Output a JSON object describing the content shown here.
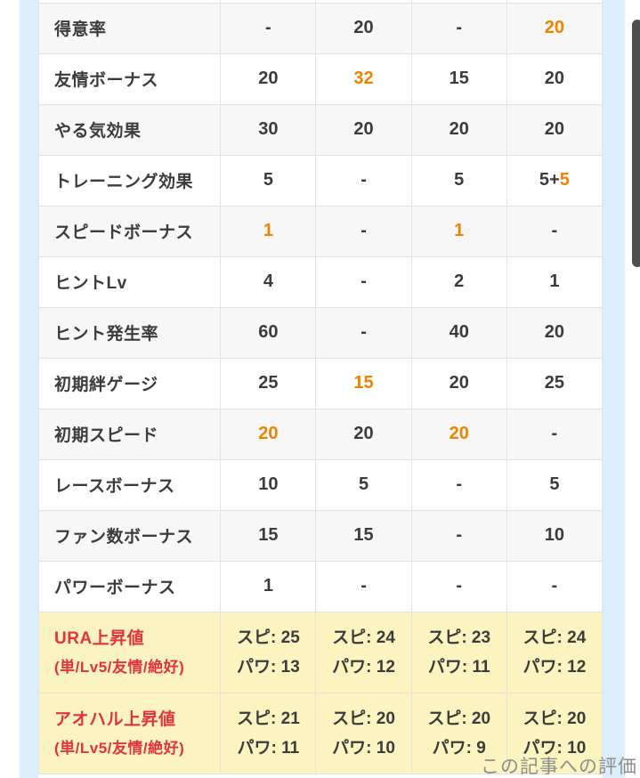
{
  "colors": {
    "text": "#3b3b3b",
    "orange": "#ef8200",
    "red": "#e4333b",
    "row-gray": "#f7f7f7",
    "row-yellow": "#fbf4c0",
    "strip-blue": "#daeffb",
    "border": "#e2e2e2",
    "scrollbar": "#4e4e4e",
    "watermark": "#8c8c8c"
  },
  "footer": {
    "watermark": "この記事への評価"
  },
  "table": {
    "rows": [
      {
        "label": "得意率",
        "shade": "gray",
        "cells": [
          {
            "text": "-"
          },
          {
            "text": "20"
          },
          {
            "text": "-"
          },
          {
            "text": "20",
            "orange": true
          }
        ]
      },
      {
        "label": "友情ボーナス",
        "shade": "white",
        "cells": [
          {
            "text": "20"
          },
          {
            "text": "32",
            "orange": true
          },
          {
            "text": "15"
          },
          {
            "text": "20"
          }
        ]
      },
      {
        "label": "やる気効果",
        "shade": "gray",
        "cells": [
          {
            "text": "30"
          },
          {
            "text": "20"
          },
          {
            "text": "20"
          },
          {
            "text": "20"
          }
        ]
      },
      {
        "label": "トレーニング効果",
        "shade": "white",
        "cells": [
          {
            "text": "5"
          },
          {
            "text": "-"
          },
          {
            "text": "5"
          },
          {
            "segments": [
              {
                "text": "5+"
              },
              {
                "text": "5",
                "orange": true
              }
            ]
          }
        ]
      },
      {
        "label": "スピードボーナス",
        "shade": "gray",
        "cells": [
          {
            "text": "1",
            "orange": true
          },
          {
            "text": "-"
          },
          {
            "text": "1",
            "orange": true
          },
          {
            "text": "-"
          }
        ]
      },
      {
        "label": "ヒントLv",
        "shade": "white",
        "cells": [
          {
            "text": "4"
          },
          {
            "text": "-"
          },
          {
            "text": "2"
          },
          {
            "text": "1"
          }
        ]
      },
      {
        "label": "ヒント発生率",
        "shade": "gray",
        "cells": [
          {
            "text": "60"
          },
          {
            "text": "-"
          },
          {
            "text": "40"
          },
          {
            "text": "20"
          }
        ]
      },
      {
        "label": "初期絆ゲージ",
        "shade": "white",
        "cells": [
          {
            "text": "25"
          },
          {
            "text": "15",
            "orange": true
          },
          {
            "text": "20"
          },
          {
            "text": "25"
          }
        ]
      },
      {
        "label": "初期スピード",
        "shade": "gray",
        "cells": [
          {
            "text": "20",
            "orange": true
          },
          {
            "text": "20"
          },
          {
            "text": "20",
            "orange": true
          },
          {
            "text": "-"
          }
        ]
      },
      {
        "label": "レースボーナス",
        "shade": "white",
        "cells": [
          {
            "text": "10"
          },
          {
            "text": "5"
          },
          {
            "text": "-"
          },
          {
            "text": "5"
          }
        ]
      },
      {
        "label": "ファン数ボーナス",
        "shade": "gray",
        "cells": [
          {
            "text": "15"
          },
          {
            "text": "15"
          },
          {
            "text": "-"
          },
          {
            "text": "10"
          }
        ]
      },
      {
        "label": "パワーボーナス",
        "shade": "white",
        "cells": [
          {
            "text": "1"
          },
          {
            "text": "-"
          },
          {
            "text": "-"
          },
          {
            "text": "-"
          }
        ]
      },
      {
        "label": "URA上昇値",
        "sublabel": "(単/Lv5/友情/絶好)",
        "type": "highlight",
        "cells": [
          {
            "lines": [
              "スピ: 25",
              "パワ: 13"
            ]
          },
          {
            "lines": [
              "スピ: 24",
              "パワ: 12"
            ]
          },
          {
            "lines": [
              "スピ: 23",
              "パワ: 11"
            ]
          },
          {
            "lines": [
              "スピ: 24",
              "パワ: 12"
            ]
          }
        ]
      },
      {
        "label": "アオハル上昇値",
        "sublabel": "(単/Lv5/友情/絶好)",
        "type": "highlight",
        "cells": [
          {
            "lines": [
              "スピ: 21",
              "パワ: 11"
            ]
          },
          {
            "lines": [
              "スピ: 20",
              "パワ: 10"
            ]
          },
          {
            "lines": [
              "スピ: 20",
              "パワ: 9"
            ]
          },
          {
            "lines": [
              "スピ: 20",
              "パワ: 10"
            ]
          }
        ]
      }
    ]
  }
}
